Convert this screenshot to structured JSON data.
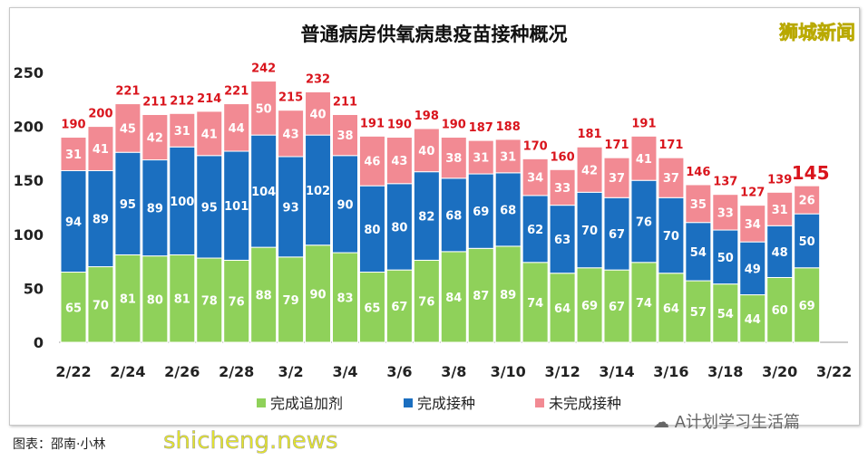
{
  "logo": "狮城新闻",
  "footer": "图表：邵南·小林",
  "watermark": "shicheng.news",
  "wechat_tag": "A计划学习生活篇",
  "colors": {
    "green": "#8fd15a",
    "blue": "#1b6fc0",
    "pink": "#f28a93",
    "total": "#d9141c"
  },
  "chart_data": {
    "type": "bar",
    "stacked": true,
    "title": "普通病房供氧病患疫苗接种概况",
    "categories": [
      "2/22",
      "2/23",
      "2/24",
      "2/25",
      "2/26",
      "2/27",
      "2/28",
      "3/1",
      "3/2",
      "3/3",
      "3/4",
      "3/5",
      "3/6",
      "3/7",
      "3/8",
      "3/9",
      "3/10",
      "3/11",
      "3/12",
      "3/13",
      "3/14",
      "3/15",
      "3/16",
      "3/17",
      "3/18",
      "3/19",
      "3/20",
      "3/21"
    ],
    "x_tick_labels": [
      "2/22",
      "2/24",
      "2/26",
      "2/28",
      "3/2",
      "3/4",
      "3/6",
      "3/8",
      "3/10",
      "3/12",
      "3/14",
      "3/16",
      "3/18",
      "3/20",
      "3/22"
    ],
    "series": [
      {
        "name": "完成追加剂",
        "color": "#8fd15a",
        "values": [
          65,
          70,
          81,
          80,
          81,
          78,
          76,
          88,
          79,
          90,
          83,
          65,
          67,
          76,
          84,
          87,
          89,
          74,
          64,
          69,
          67,
          74,
          64,
          57,
          54,
          44,
          60,
          69
        ]
      },
      {
        "name": "完成接种",
        "color": "#1b6fc0",
        "values": [
          94,
          89,
          95,
          89,
          100,
          95,
          101,
          104,
          93,
          102,
          90,
          80,
          80,
          82,
          68,
          69,
          68,
          62,
          63,
          70,
          67,
          76,
          70,
          54,
          50,
          49,
          48,
          50
        ]
      },
      {
        "name": "未完成接种",
        "color": "#f28a93",
        "values": [
          31,
          41,
          45,
          42,
          31,
          41,
          44,
          50,
          43,
          40,
          38,
          46,
          43,
          40,
          38,
          31,
          31,
          34,
          33,
          42,
          37,
          41,
          37,
          35,
          33,
          34,
          31,
          26
        ]
      }
    ],
    "totals": [
      190,
      200,
      221,
      211,
      212,
      214,
      221,
      242,
      215,
      232,
      211,
      191,
      190,
      198,
      190,
      187,
      188,
      170,
      160,
      181,
      171,
      191,
      171,
      146,
      137,
      127,
      139,
      145
    ],
    "ylim": [
      0,
      250
    ],
    "y_ticks": [
      0,
      50,
      100,
      150,
      200,
      250
    ],
    "grid": false,
    "legend": "bottom",
    "xlabel": "",
    "ylabel": ""
  }
}
